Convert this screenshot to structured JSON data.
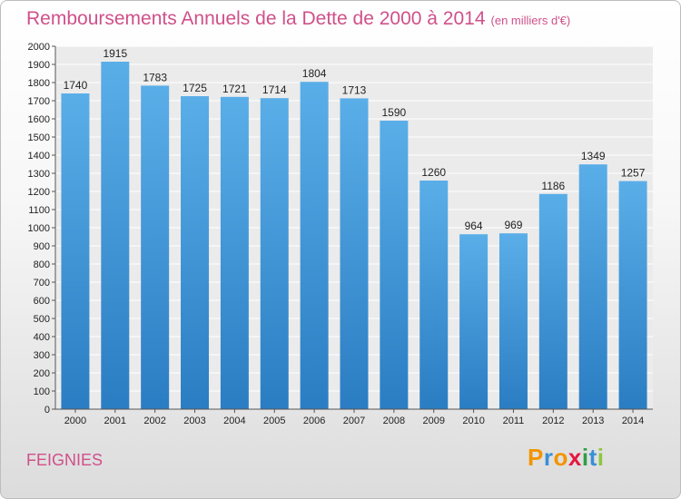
{
  "title_main": "Remboursements Annuels de la Dette de 2000 à 2014",
  "title_unit": "(en milliers d'€)",
  "city": "FEIGNIES",
  "logo": {
    "letters": [
      "P",
      "r",
      "o",
      "x",
      "i",
      "t",
      "i"
    ],
    "colors": [
      "#f29400",
      "#3a8fd6",
      "#f29400",
      "#e5173f",
      "#2f9e44",
      "#3a8fd6",
      "#8dc63f"
    ]
  },
  "colors": {
    "bar_top": "#5aaee8",
    "bar_bottom": "#2a7dc2",
    "title": "#d0508a"
  },
  "chart_data": {
    "type": "bar",
    "title": "Remboursements Annuels de la Dette de 2000 à 2014",
    "xlabel": "",
    "ylabel": "",
    "categories": [
      "2000",
      "2001",
      "2002",
      "2003",
      "2004",
      "2005",
      "2006",
      "2007",
      "2008",
      "2009",
      "2010",
      "2011",
      "2012",
      "2013",
      "2014"
    ],
    "values": [
      1740,
      1915,
      1783,
      1725,
      1721,
      1714,
      1804,
      1713,
      1590,
      1260,
      964,
      969,
      1186,
      1349,
      1257
    ],
    "ylim": [
      0,
      2000
    ],
    "yticks": [
      0,
      100,
      200,
      300,
      400,
      500,
      600,
      700,
      800,
      900,
      1000,
      1100,
      1200,
      1300,
      1400,
      1500,
      1600,
      1700,
      1800,
      1900,
      2000
    ],
    "grid": true
  }
}
